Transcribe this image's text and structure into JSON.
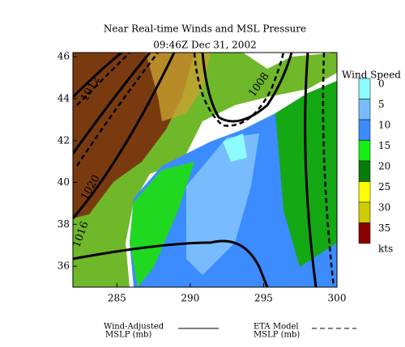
{
  "chart_data": {
    "type": "map",
    "title": "Near Real-time Winds and MSL Pressure",
    "subtitle": "09:46Z Dec 31, 2002",
    "xlim": [
      282,
      300
    ],
    "ylim": [
      35,
      46.2
    ],
    "xticks": [
      285,
      290,
      295,
      300
    ],
    "yticks": [
      36,
      38,
      40,
      42,
      44,
      46
    ],
    "contour_labels": [
      "1012",
      "1020",
      "1016",
      "1008"
    ],
    "colorbar": {
      "title": "Wind Speed",
      "levels": [
        0,
        5,
        10,
        15,
        20,
        25,
        30,
        35
      ],
      "unit": "kts",
      "colors": [
        "#8cfcff",
        "#78bcff",
        "#3c8cff",
        "#14f014",
        "#087c08",
        "#ffff00",
        "#cccc00",
        "#8c0000"
      ]
    },
    "legend": [
      {
        "label": [
          "Wind-Adjusted",
          "MSLP (mb)"
        ],
        "style": "solid"
      },
      {
        "label": [
          "ETA Model",
          "MSLP (mb)"
        ],
        "style": "dashed"
      }
    ]
  }
}
